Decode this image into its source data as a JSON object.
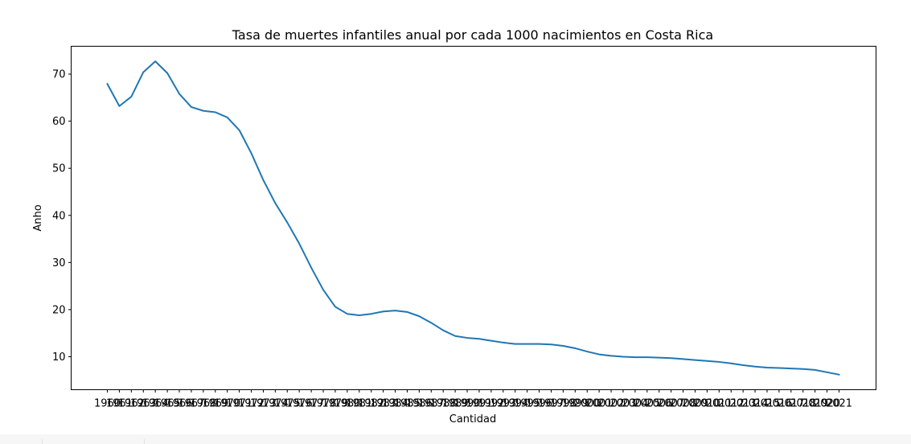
{
  "chart_data": {
    "type": "line",
    "title": "Tasa de muertes infantiles anual por cada 1000 nacimientos en Costa Rica",
    "xlabel": "Cantidad",
    "ylabel": "Anho",
    "x": [
      "1960",
      "1961",
      "1962",
      "1963",
      "1964",
      "1965",
      "1966",
      "1967",
      "1968",
      "1969",
      "1970",
      "1971",
      "1972",
      "1973",
      "1974",
      "1975",
      "1976",
      "1977",
      "1978",
      "1979",
      "1980",
      "1981",
      "1982",
      "1983",
      "1984",
      "1985",
      "1986",
      "1987",
      "1988",
      "1989",
      "1990",
      "1991",
      "1992",
      "1993",
      "1994",
      "1995",
      "1996",
      "1997",
      "1998",
      "1999",
      "2000",
      "2001",
      "2002",
      "2003",
      "2004",
      "2005",
      "2006",
      "2007",
      "2008",
      "2009",
      "2010",
      "2011",
      "2012",
      "2013",
      "2014",
      "2015",
      "2016",
      "2017",
      "2018",
      "2019",
      "2020",
      "2021"
    ],
    "series": [
      {
        "name": "",
        "color": "#1f77b4",
        "values": [
          67.9,
          63.2,
          65.2,
          70.4,
          72.7,
          70.2,
          65.8,
          63.0,
          62.2,
          61.9,
          60.8,
          58.1,
          53.2,
          47.5,
          42.6,
          38.5,
          34.0,
          28.9,
          24.2,
          20.6,
          19.1,
          18.8,
          19.1,
          19.6,
          19.8,
          19.5,
          18.6,
          17.2,
          15.6,
          14.4,
          14.0,
          13.8,
          13.4,
          13.0,
          12.7,
          12.7,
          12.7,
          12.6,
          12.3,
          11.8,
          11.1,
          10.5,
          10.2,
          10.0,
          9.9,
          9.9,
          9.8,
          9.7,
          9.5,
          9.3,
          9.1,
          8.9,
          8.6,
          8.2,
          7.9,
          7.7,
          7.6,
          7.5,
          7.4,
          7.2,
          6.7,
          6.2
        ]
      }
    ],
    "yticks": [
      10,
      20,
      30,
      40,
      50,
      60,
      70
    ],
    "ylim": [
      3.0,
      75.9
    ],
    "grid": false
  }
}
